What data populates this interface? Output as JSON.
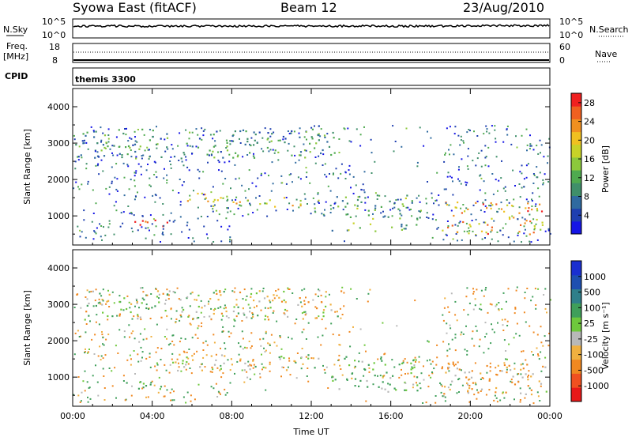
{
  "header": {
    "station": "Syowa East (fitACF)",
    "beam": "Beam 12",
    "date": "23/Aug/2010"
  },
  "strips": {
    "nsky_label": "N.Sky",
    "nsky_ticks": [
      "10^5",
      "10^0"
    ],
    "nsearch_label": "N.Search",
    "nsearch_ticks": [
      "10^5",
      "10^0"
    ],
    "freq_label": "Freq.",
    "freq_unit": "[MHz]",
    "freq_ticks": [
      "18",
      "8"
    ],
    "nave_label": "Nave",
    "nave_ticks": [
      "60",
      "0"
    ],
    "cpid_label": "CPID",
    "cpid_value": "themis 3300"
  },
  "chart_data": [
    {
      "type": "heatmap",
      "panel": "power",
      "ylabel": "Slant Range [km]",
      "xlabel": "",
      "ylim": [
        200,
        4500
      ],
      "yticks": [
        "1000",
        "2000",
        "3000",
        "4000"
      ],
      "xlim_hours": [
        0,
        24
      ],
      "colorbar": {
        "label": "Power [dB]",
        "ticks": [
          "4",
          "8",
          "12",
          "16",
          "20",
          "24",
          "28"
        ],
        "range": [
          0,
          30
        ]
      },
      "scatter_regions": [
        {
          "t0": 2.6,
          "t1": 5.0,
          "r0": 700,
          "r1": 900,
          "level": 28
        },
        {
          "t0": 5.0,
          "t1": 8.0,
          "r0": 1400,
          "r1": 1650,
          "level": 20
        },
        {
          "t0": 7.0,
          "t1": 12.5,
          "r0": 1200,
          "r1": 1550,
          "level": 18
        },
        {
          "t0": 18.5,
          "t1": 23.8,
          "r0": 500,
          "r1": 1400,
          "level": 22
        },
        {
          "t0": 0.1,
          "t1": 13.5,
          "r0": 2600,
          "r1": 3400,
          "level": 10
        },
        {
          "t0": 13.0,
          "t1": 17.5,
          "r0": 600,
          "r1": 1600,
          "level": 12
        }
      ]
    },
    {
      "type": "heatmap",
      "panel": "velocity",
      "ylabel": "Slant Range [km]",
      "xlabel": "Time UT",
      "ylim": [
        200,
        4500
      ],
      "yticks": [
        "1000",
        "2000",
        "3000",
        "4000"
      ],
      "xticks": [
        "00:00",
        "04:00",
        "08:00",
        "12:00",
        "16:00",
        "20:00",
        "00:00"
      ],
      "xlim_hours": [
        0,
        24
      ],
      "colorbar": {
        "label": "Velocity [m s⁻¹]",
        "ticks": [
          "1000",
          "500",
          "100",
          "25",
          "-25",
          "-100",
          "-500",
          "-1000"
        ]
      },
      "scatter_regions": [
        {
          "t0": 5.0,
          "t1": 12.5,
          "r0": 1200,
          "r1": 1650,
          "level": 0
        },
        {
          "t0": 2.6,
          "t1": 5.0,
          "r0": 650,
          "r1": 900,
          "level": 100
        },
        {
          "t0": 18.5,
          "t1": 23.8,
          "r0": 500,
          "r1": 1400,
          "level": -100
        },
        {
          "t0": 0.1,
          "t1": 13.5,
          "r0": 2600,
          "r1": 3400,
          "level": 0
        },
        {
          "t0": 13.0,
          "t1": 17.5,
          "r0": 600,
          "r1": 1600,
          "level": 100
        }
      ]
    }
  ],
  "colors": {
    "power_scale": [
      "#1515e6",
      "#1e3fb0",
      "#2f6aa0",
      "#3f8f6a",
      "#4faa4f",
      "#8cc83c",
      "#c8d228",
      "#f0c020",
      "#f09020",
      "#f06020",
      "#f02020"
    ],
    "velocity_scale": [
      "#e81818",
      "#f05020",
      "#f08820",
      "#f0b040",
      "#b8b8b8",
      "#6ec83c",
      "#3f9f5a",
      "#2f7f8a",
      "#1e4fb0",
      "#1a2fd0"
    ]
  }
}
